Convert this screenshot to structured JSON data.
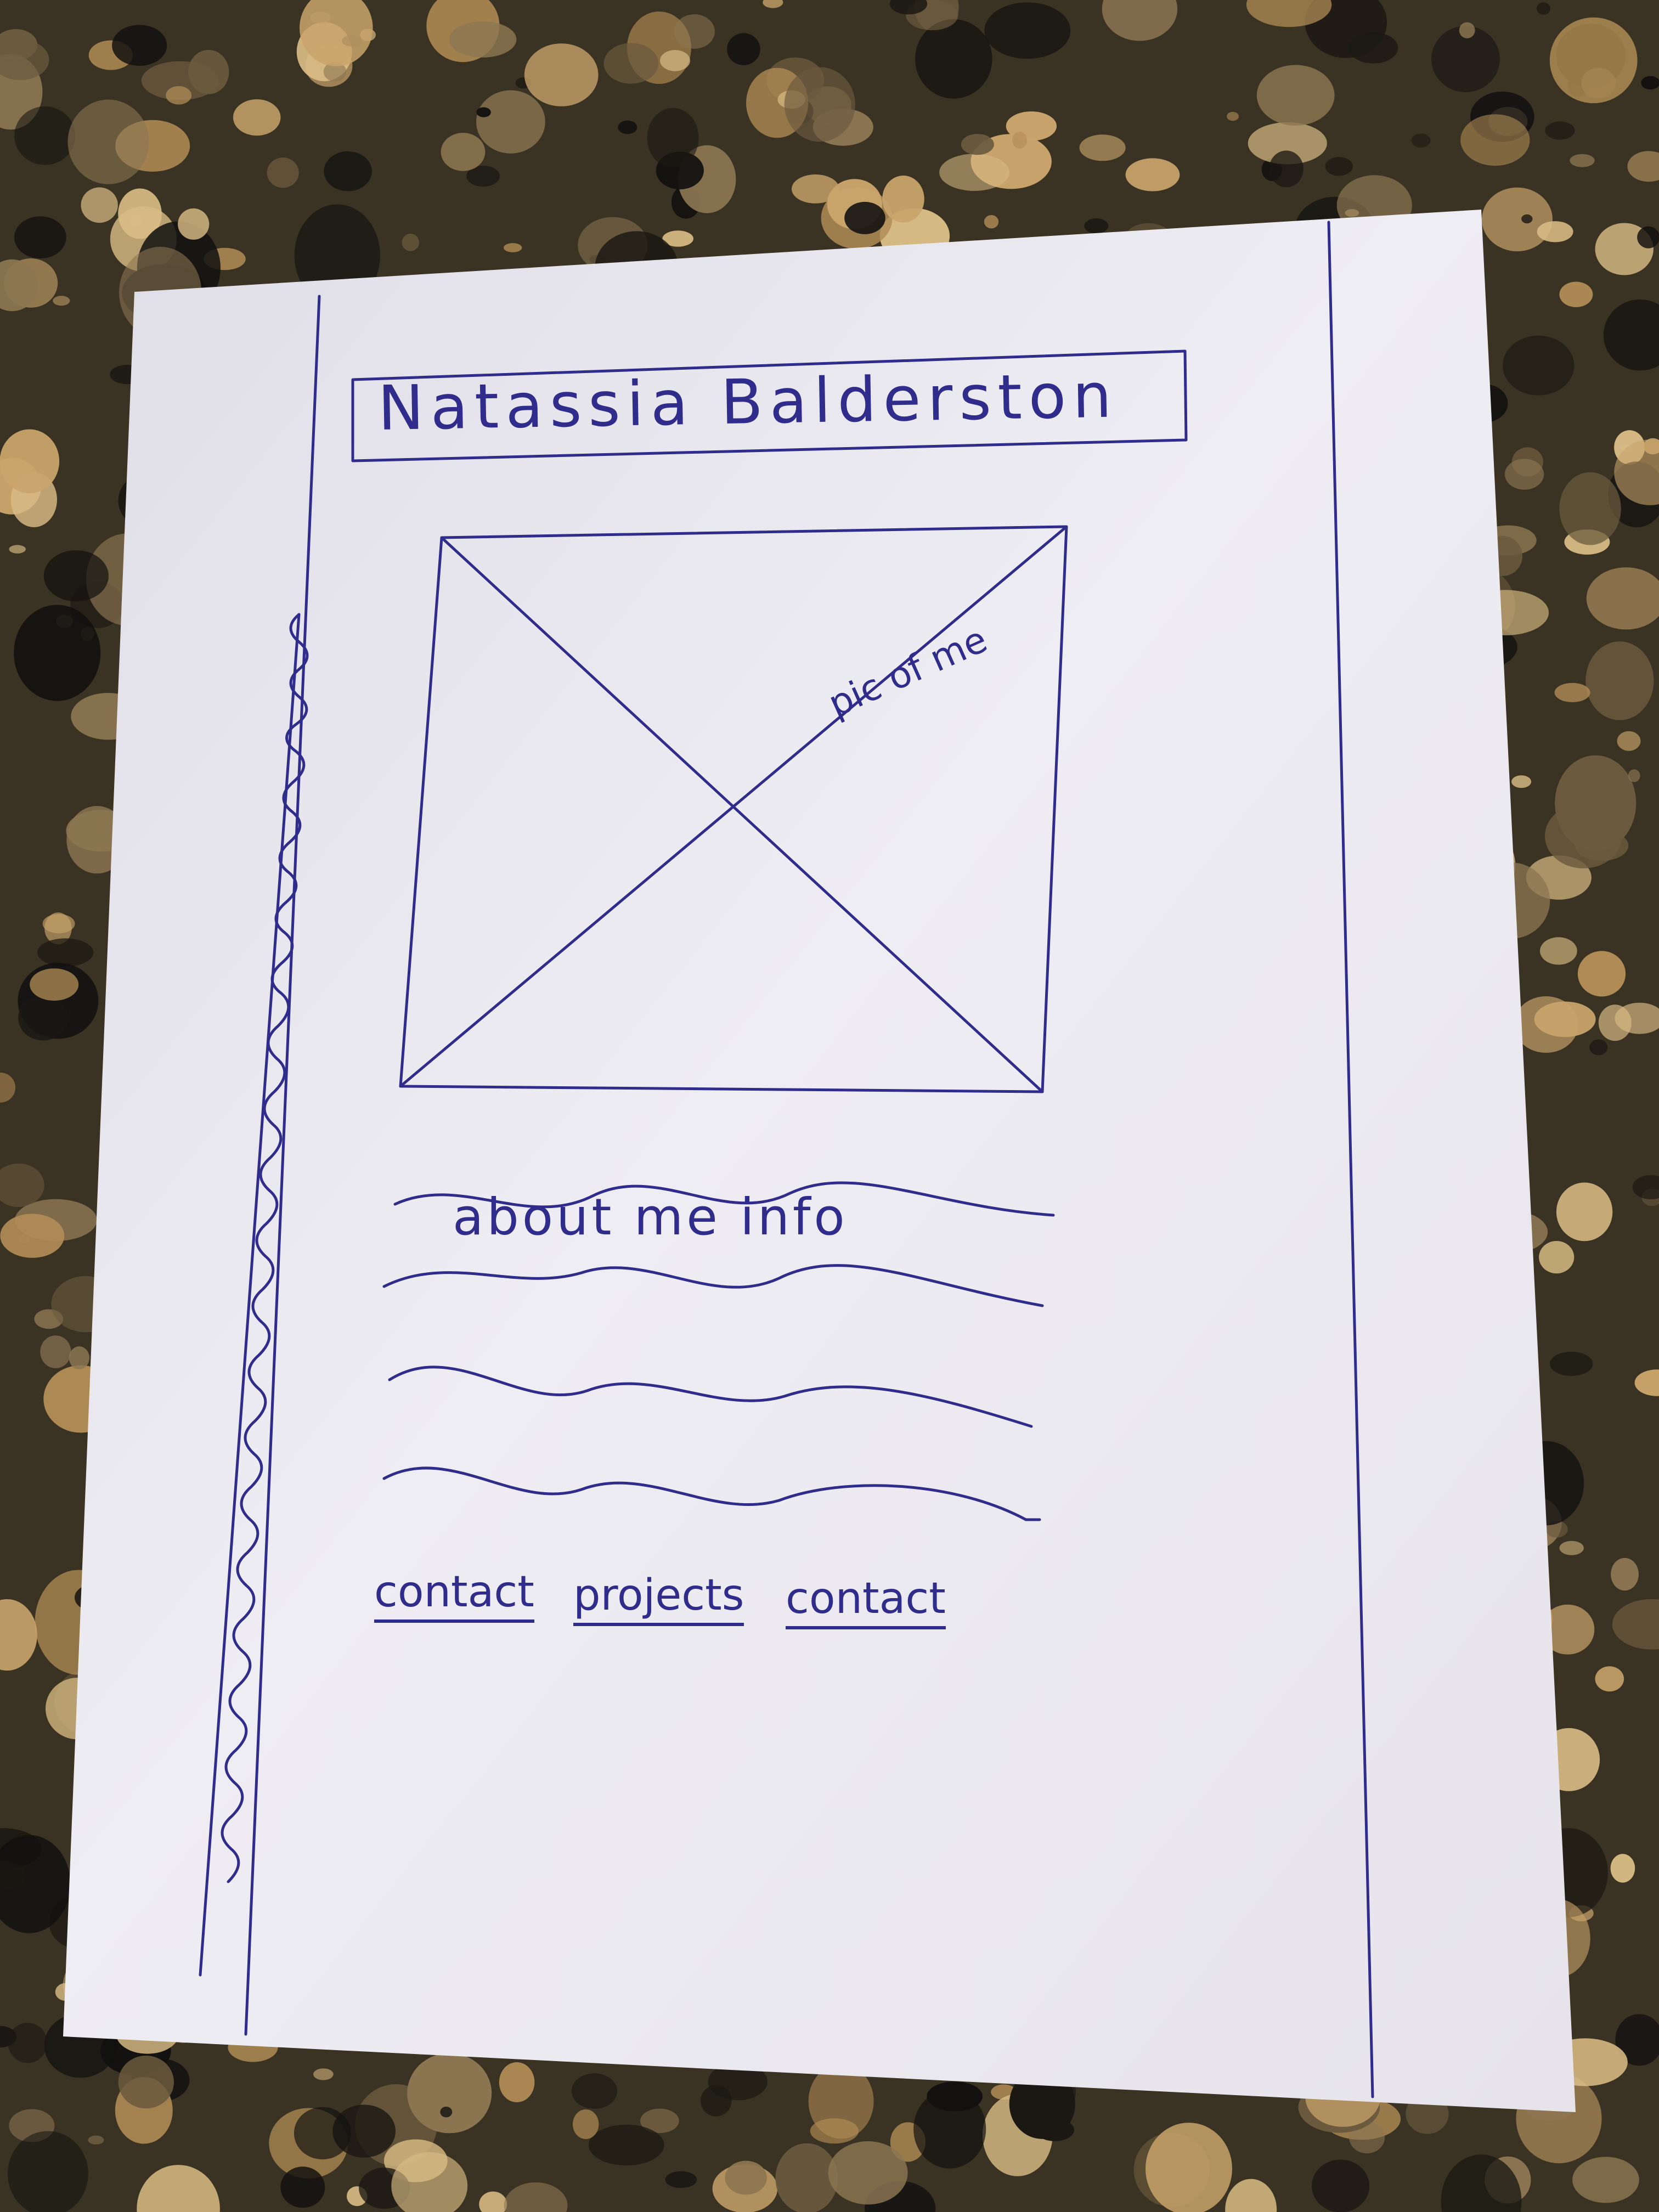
{
  "sketch": {
    "name_header": "Natassia Balderston",
    "image_placeholder_label": "pic of me",
    "about_text": "about me info",
    "nav_links": [
      "contact",
      "projects",
      "contact"
    ]
  },
  "colors": {
    "ink": "#2f2c8c",
    "paper": "#ecebf1",
    "granite_base": "#3a3222",
    "granite_light": "#c9a46b"
  }
}
